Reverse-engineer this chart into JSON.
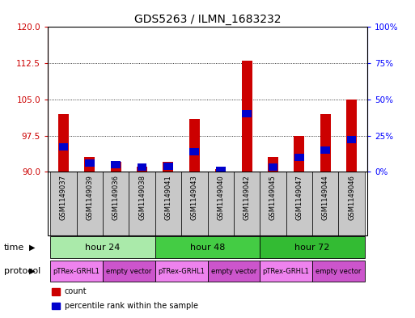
{
  "title": "GDS5263 / ILMN_1683232",
  "samples": [
    "GSM1149037",
    "GSM1149039",
    "GSM1149036",
    "GSM1149038",
    "GSM1149041",
    "GSM1149043",
    "GSM1149040",
    "GSM1149042",
    "GSM1149045",
    "GSM1149047",
    "GSM1149044",
    "GSM1149046"
  ],
  "red_values": [
    102,
    93,
    92,
    91,
    92,
    101,
    90.5,
    113,
    93,
    97.5,
    102,
    105
  ],
  "blue_values": [
    17,
    6,
    5,
    3,
    4,
    14,
    1,
    40,
    3,
    10,
    15,
    22
  ],
  "ylim_left": [
    90,
    120
  ],
  "ylim_right": [
    0,
    100
  ],
  "yticks_left": [
    90,
    97.5,
    105,
    112.5,
    120
  ],
  "yticks_right": [
    0,
    25,
    50,
    75,
    100
  ],
  "time_groups": [
    {
      "label": "hour 24",
      "start": 0,
      "end": 3,
      "color": "#aaeaaa"
    },
    {
      "label": "hour 48",
      "start": 4,
      "end": 7,
      "color": "#44cc44"
    },
    {
      "label": "hour 72",
      "start": 8,
      "end": 11,
      "color": "#33bb33"
    }
  ],
  "protocol_groups": [
    {
      "label": "pTRex-GRHL1",
      "start": 0,
      "end": 1,
      "color": "#ee82ee"
    },
    {
      "label": "empty vector",
      "start": 2,
      "end": 3,
      "color": "#cc55cc"
    },
    {
      "label": "pTRex-GRHL1",
      "start": 4,
      "end": 5,
      "color": "#ee82ee"
    },
    {
      "label": "empty vector",
      "start": 6,
      "end": 7,
      "color": "#cc55cc"
    },
    {
      "label": "pTRex-GRHL1",
      "start": 8,
      "end": 9,
      "color": "#ee82ee"
    },
    {
      "label": "empty vector",
      "start": 10,
      "end": 11,
      "color": "#cc55cc"
    }
  ],
  "red_color": "#cc0000",
  "blue_color": "#0000cc",
  "sample_bg_color": "#c8c8c8",
  "legend_items": [
    {
      "color": "#cc0000",
      "label": "count"
    },
    {
      "color": "#0000cc",
      "label": "percentile rank within the sample"
    }
  ]
}
